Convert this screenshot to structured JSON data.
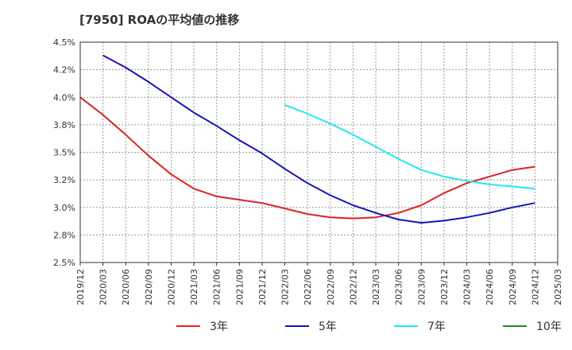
{
  "chart_data": {
    "type": "line",
    "title": "[7950]  ROAの平均値の推移",
    "xlabel": "",
    "ylabel": "",
    "ylim": [
      2.5,
      4.5
    ],
    "y_ticks": [
      "2.5%",
      "2.8%",
      "3.0%",
      "3.2%",
      "3.5%",
      "3.8%",
      "4.0%",
      "4.2%",
      "4.5%"
    ],
    "categories": [
      "2019/12",
      "2020/03",
      "2020/06",
      "2020/09",
      "2020/12",
      "2021/03",
      "2021/06",
      "2021/09",
      "2021/12",
      "2022/03",
      "2022/06",
      "2022/09",
      "2022/12",
      "2023/03",
      "2023/06",
      "2023/09",
      "2023/12",
      "2024/03",
      "2024/06",
      "2024/09",
      "2024/12",
      "2025/03"
    ],
    "grid": true,
    "legend_position": "bottom",
    "series": [
      {
        "name": "3年",
        "color": "#dd2222",
        "values": [
          4.0,
          3.84,
          3.66,
          3.47,
          3.3,
          3.17,
          3.1,
          3.07,
          3.04,
          2.99,
          2.94,
          2.91,
          2.9,
          2.91,
          2.95,
          3.02,
          3.13,
          3.22,
          3.28,
          3.34,
          3.37,
          null
        ]
      },
      {
        "name": "5年",
        "color": "#1515bb",
        "values": [
          null,
          4.38,
          4.27,
          4.14,
          4.0,
          3.86,
          3.74,
          3.61,
          3.49,
          3.35,
          3.22,
          3.11,
          3.02,
          2.95,
          2.89,
          2.86,
          2.88,
          2.91,
          2.95,
          3.0,
          3.04,
          null
        ]
      },
      {
        "name": "7年",
        "color": "#22e8ee",
        "values": [
          null,
          null,
          null,
          null,
          null,
          null,
          null,
          null,
          null,
          3.93,
          3.85,
          3.76,
          3.66,
          3.55,
          3.44,
          3.34,
          3.28,
          3.24,
          3.21,
          3.19,
          3.17,
          null
        ]
      },
      {
        "name": "10年",
        "color": "#228822",
        "values": [
          null,
          null,
          null,
          null,
          null,
          null,
          null,
          null,
          null,
          null,
          null,
          null,
          null,
          null,
          null,
          null,
          null,
          null,
          null,
          null,
          null,
          null
        ]
      }
    ]
  }
}
